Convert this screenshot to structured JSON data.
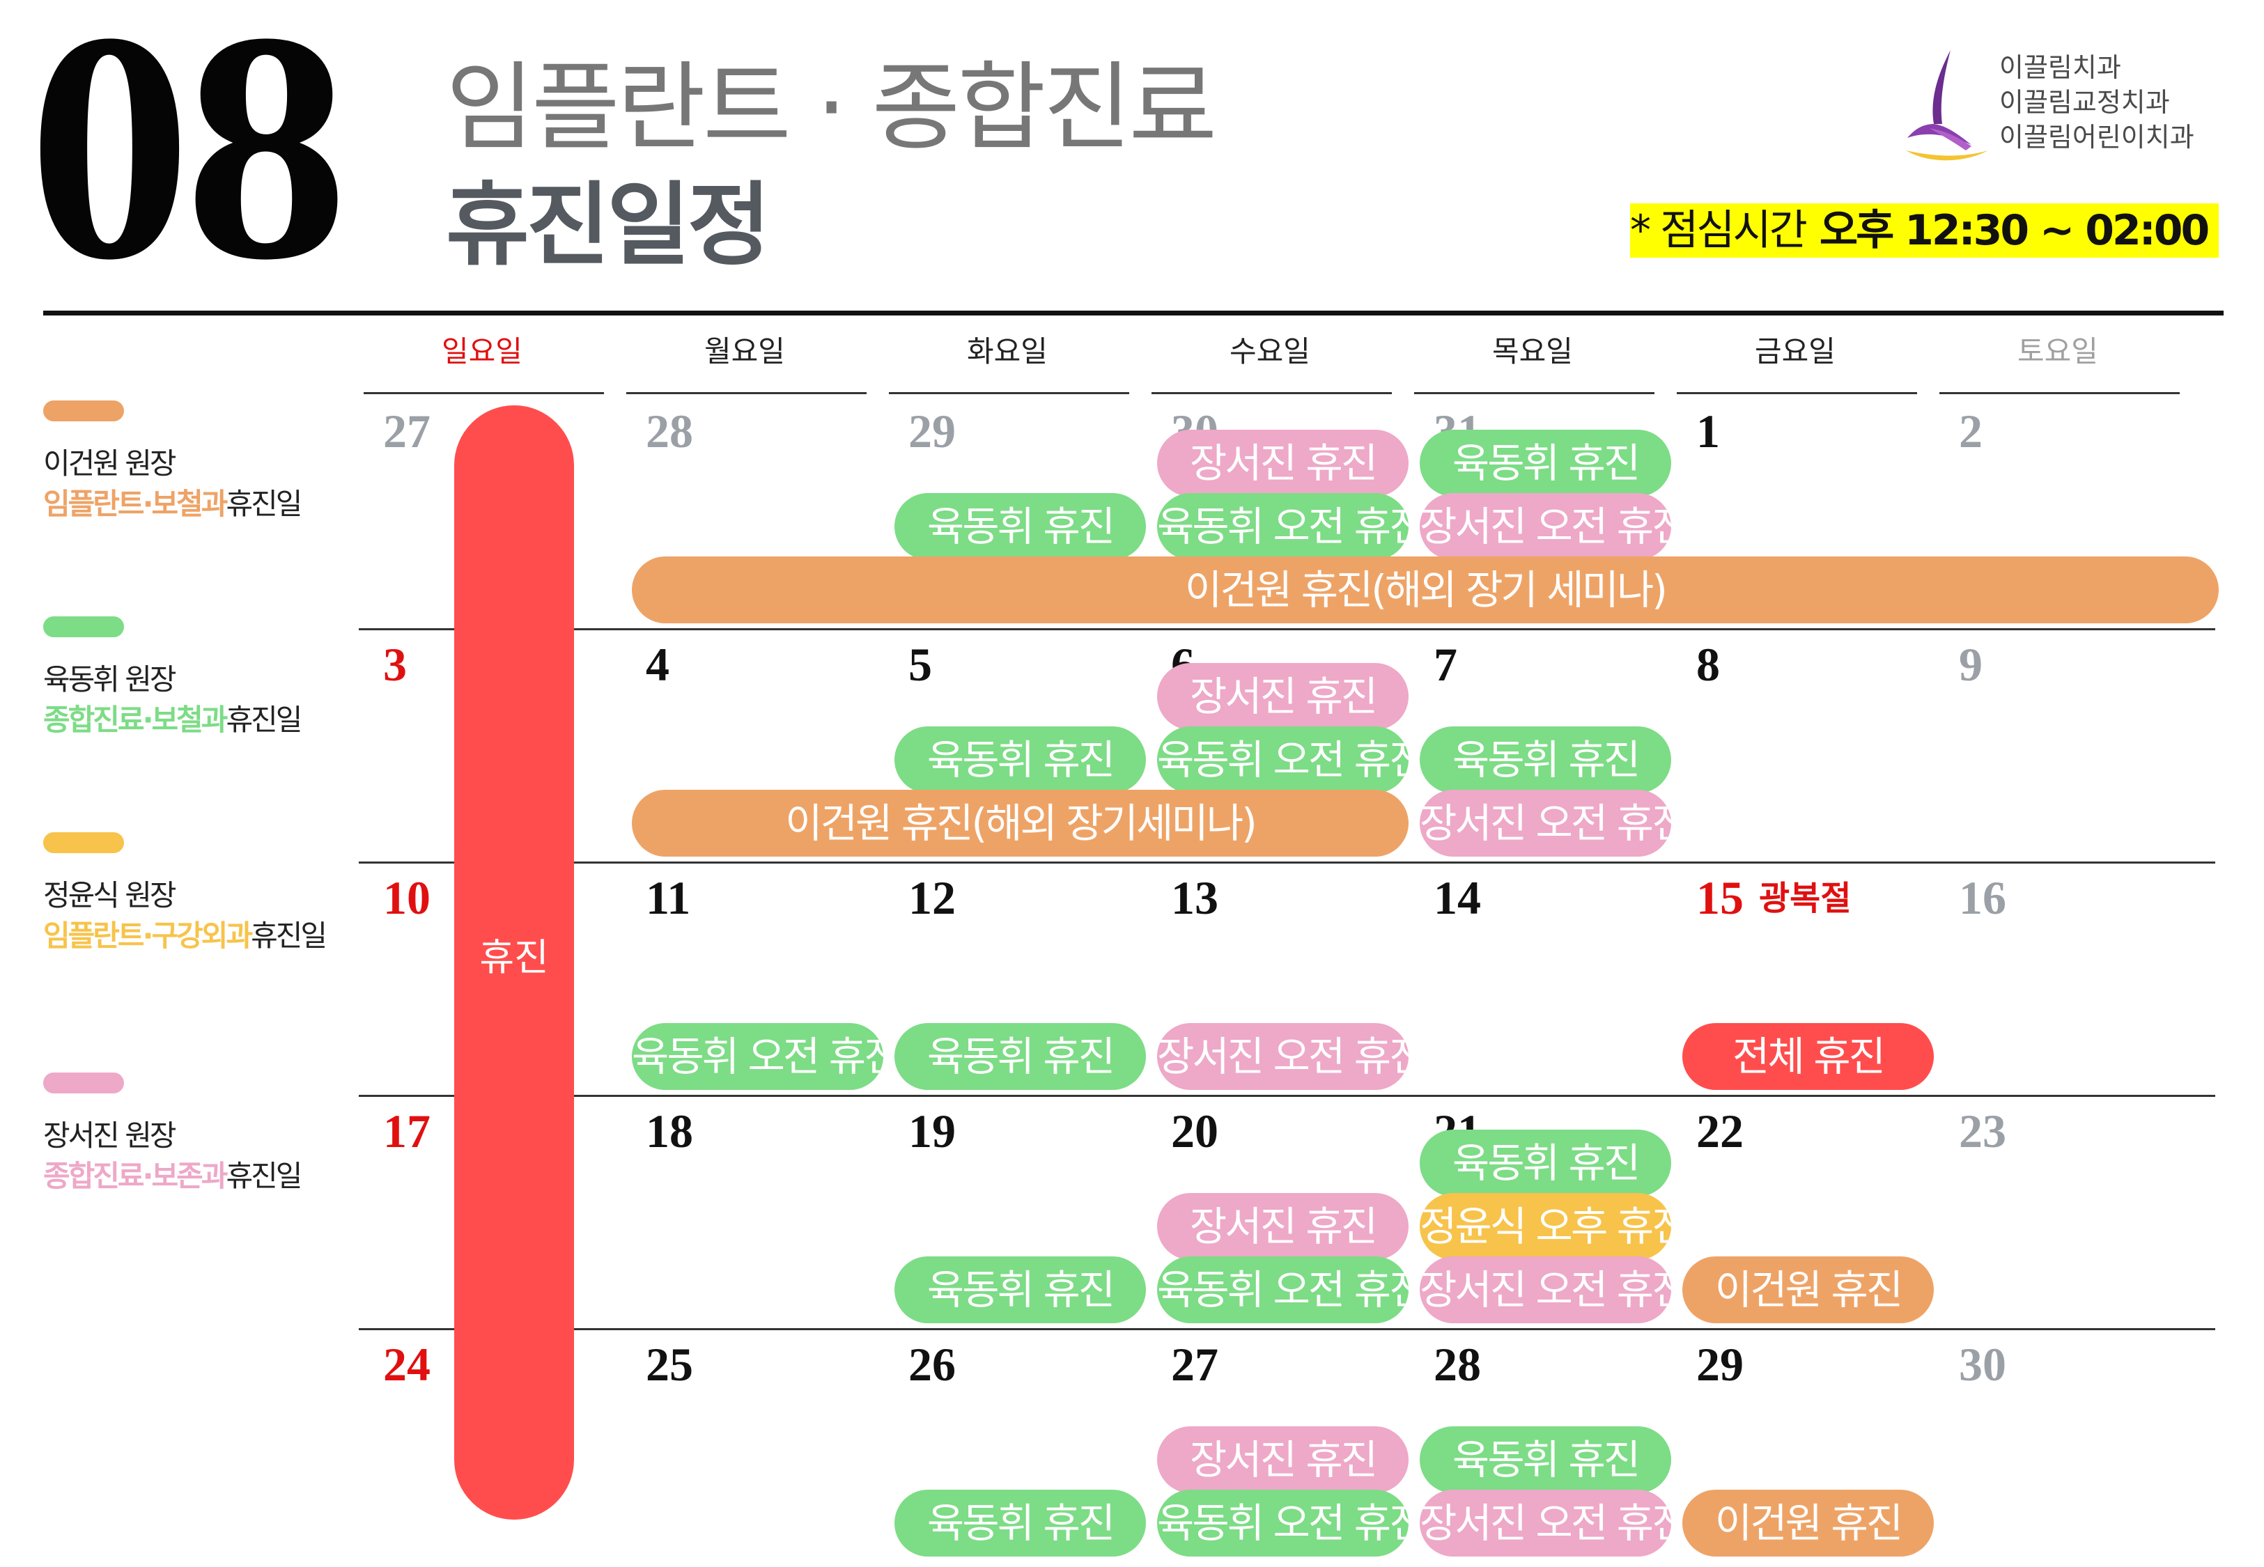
{
  "header": {
    "month": "08",
    "title_line1": "임플란트 · 종합진료",
    "title_line2": "휴진일정",
    "lunch_label": "* 점심시간",
    "lunch_time": "오후 12:30 ~ 02:00"
  },
  "logo": {
    "lines": [
      "이끌림치과",
      "이끌림교정치과",
      "이끌림어린이치과"
    ]
  },
  "colors": {
    "orange": "#eea366",
    "green": "#7ddc86",
    "yellow": "#f7c34b",
    "pink": "#eea8c8",
    "red": "#ff4d4d",
    "holiday_red": "#e01010"
  },
  "weekdays": [
    "일요일",
    "월요일",
    "화요일",
    "수요일",
    "목요일",
    "금요일",
    "토요일"
  ],
  "weeks": [
    [
      {
        "num": "27",
        "style": "muted"
      },
      {
        "num": "28",
        "style": "muted"
      },
      {
        "num": "29",
        "style": "muted"
      },
      {
        "num": "30",
        "style": "muted"
      },
      {
        "num": "31",
        "style": "muted"
      },
      {
        "num": "1",
        "style": "normal"
      },
      {
        "num": "2",
        "style": "muted"
      }
    ],
    [
      {
        "num": "3",
        "style": "red"
      },
      {
        "num": "4",
        "style": "normal"
      },
      {
        "num": "5",
        "style": "normal"
      },
      {
        "num": "6",
        "style": "normal"
      },
      {
        "num": "7",
        "style": "normal"
      },
      {
        "num": "8",
        "style": "normal"
      },
      {
        "num": "9",
        "style": "muted"
      }
    ],
    [
      {
        "num": "10",
        "style": "red"
      },
      {
        "num": "11",
        "style": "normal"
      },
      {
        "num": "12",
        "style": "normal"
      },
      {
        "num": "13",
        "style": "normal"
      },
      {
        "num": "14",
        "style": "normal"
      },
      {
        "num": "15",
        "style": "red",
        "holiday": "광복절"
      },
      {
        "num": "16",
        "style": "muted"
      }
    ],
    [
      {
        "num": "17",
        "style": "red"
      },
      {
        "num": "18",
        "style": "normal"
      },
      {
        "num": "19",
        "style": "normal"
      },
      {
        "num": "20",
        "style": "normal"
      },
      {
        "num": "21",
        "style": "normal"
      },
      {
        "num": "22",
        "style": "normal"
      },
      {
        "num": "23",
        "style": "muted"
      }
    ],
    [
      {
        "num": "24",
        "style": "red"
      },
      {
        "num": "25",
        "style": "normal"
      },
      {
        "num": "26",
        "style": "normal"
      },
      {
        "num": "27",
        "style": "normal"
      },
      {
        "num": "28",
        "style": "normal"
      },
      {
        "num": "29",
        "style": "normal"
      },
      {
        "num": "30",
        "style": "muted"
      }
    ]
  ],
  "sunday_closed_label": "휴진",
  "events": [
    {
      "week": 0,
      "start": 3,
      "end": 3,
      "row": 0,
      "label": "장서진 휴진",
      "color": "pink"
    },
    {
      "week": 0,
      "start": 4,
      "end": 4,
      "row": 0,
      "label": "육동휘 휴진",
      "color": "green"
    },
    {
      "week": 0,
      "start": 2,
      "end": 2,
      "row": 1,
      "label": "육동휘 휴진",
      "color": "green"
    },
    {
      "week": 0,
      "start": 3,
      "end": 3,
      "row": 1,
      "label": "육동휘 오전 휴진",
      "color": "green"
    },
    {
      "week": 0,
      "start": 4,
      "end": 4,
      "row": 1,
      "label": "장서진 오전 휴진",
      "color": "pink"
    },
    {
      "week": 0,
      "start": 1,
      "end": 6,
      "row": 2,
      "label": "이건원 휴진(해외 장기 세미나)",
      "color": "orange"
    },
    {
      "week": 1,
      "start": 3,
      "end": 3,
      "row": 0,
      "label": "장서진 휴진",
      "color": "pink"
    },
    {
      "week": 1,
      "start": 2,
      "end": 2,
      "row": 1,
      "label": "육동휘 휴진",
      "color": "green"
    },
    {
      "week": 1,
      "start": 3,
      "end": 3,
      "row": 1,
      "label": "육동휘 오전 휴진",
      "color": "green"
    },
    {
      "week": 1,
      "start": 4,
      "end": 4,
      "row": 1,
      "label": "육동휘 휴진",
      "color": "green"
    },
    {
      "week": 1,
      "start": 1,
      "end": 3,
      "row": 2,
      "label": "이건원 휴진(해외 장기세미나)",
      "color": "orange"
    },
    {
      "week": 1,
      "start": 4,
      "end": 4,
      "row": 2,
      "label": "장서진 오전 휴진",
      "color": "pink"
    },
    {
      "week": 2,
      "start": 1,
      "end": 1,
      "row": 2,
      "label": "육동휘 오전 휴진",
      "color": "green"
    },
    {
      "week": 2,
      "start": 2,
      "end": 2,
      "row": 2,
      "label": "육동휘 휴진",
      "color": "green"
    },
    {
      "week": 2,
      "start": 3,
      "end": 3,
      "row": 2,
      "label": "장서진 오전 휴진",
      "color": "pink"
    },
    {
      "week": 2,
      "start": 5,
      "end": 5,
      "row": 2,
      "label": "전체 휴진",
      "color": "red"
    },
    {
      "week": 3,
      "start": 4,
      "end": 4,
      "row": 0,
      "label": "육동휘 휴진",
      "color": "green"
    },
    {
      "week": 3,
      "start": 3,
      "end": 3,
      "row": 1,
      "label": "장서진 휴진",
      "color": "pink"
    },
    {
      "week": 3,
      "start": 4,
      "end": 4,
      "row": 1,
      "label": "정윤식 오후 휴진",
      "color": "yellow"
    },
    {
      "week": 3,
      "start": 2,
      "end": 2,
      "row": 2,
      "label": "육동휘 휴진",
      "color": "green"
    },
    {
      "week": 3,
      "start": 3,
      "end": 3,
      "row": 2,
      "label": "육동휘 오전 휴진",
      "color": "green"
    },
    {
      "week": 3,
      "start": 4,
      "end": 4,
      "row": 2,
      "label": "장서진 오전 휴진",
      "color": "pink"
    },
    {
      "week": 3,
      "start": 5,
      "end": 5,
      "row": 2,
      "label": "이건원 휴진",
      "color": "orange"
    },
    {
      "week": 4,
      "start": 3,
      "end": 3,
      "row": 1,
      "label": "장서진 휴진",
      "color": "pink"
    },
    {
      "week": 4,
      "start": 4,
      "end": 4,
      "row": 1,
      "label": "육동휘 휴진",
      "color": "green"
    },
    {
      "week": 4,
      "start": 2,
      "end": 2,
      "row": 2,
      "label": "육동휘 휴진",
      "color": "green"
    },
    {
      "week": 4,
      "start": 3,
      "end": 3,
      "row": 2,
      "label": "육동휘 오전 휴진",
      "color": "green"
    },
    {
      "week": 4,
      "start": 4,
      "end": 4,
      "row": 2,
      "label": "장서진 오전 휴진",
      "color": "pink"
    },
    {
      "week": 4,
      "start": 5,
      "end": 5,
      "row": 2,
      "label": "이건원 휴진",
      "color": "orange"
    }
  ],
  "legend": [
    {
      "color": "orange",
      "name": "이건원 원장",
      "dept1": "임플란트",
      "dept2": "보철과",
      "suffix": "휴진일"
    },
    {
      "color": "green",
      "name": "육동휘 원장",
      "dept1": "종합진료",
      "dept2": "보철과",
      "suffix": "휴진일"
    },
    {
      "color": "yellow",
      "name": "정윤식 원장",
      "dept1": "임플란트",
      "dept2": "구강외과",
      "suffix": "휴진일"
    },
    {
      "color": "pink",
      "name": "장서진 원장",
      "dept1": "종합진료",
      "dept2": "보존과",
      "suffix": "휴진일"
    }
  ]
}
